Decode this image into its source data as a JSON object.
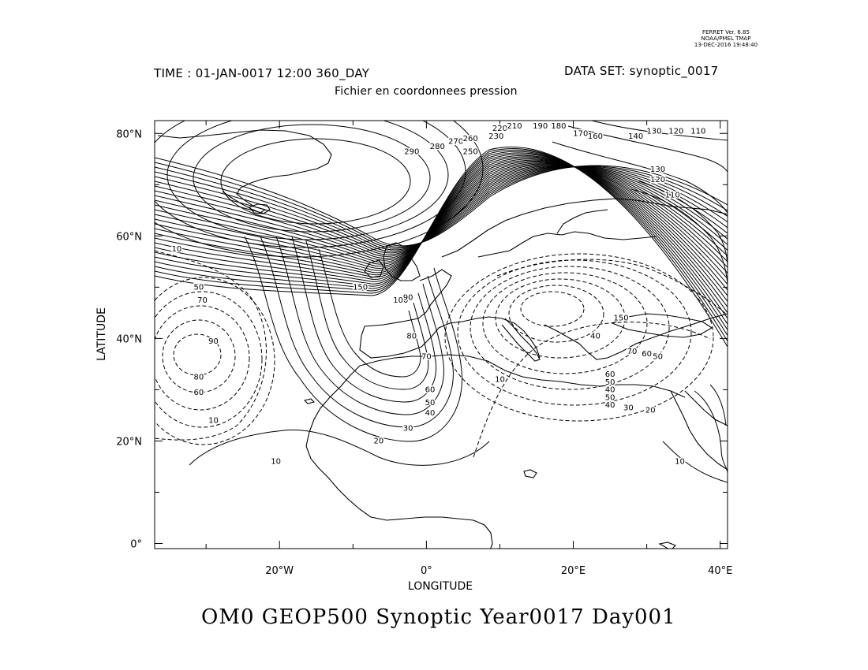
{
  "ferret": {
    "line1": "FERRET Ver. 6.85",
    "line2": "NOAA/PMEL TMAP",
    "line3": "13-DEC-2016 19:48:40"
  },
  "header": {
    "time": "TIME : 01-JAN-0017 12:00 360_DAY",
    "dataset": "DATA SET: synoptic_0017",
    "subtitle": "Fichier en coordonnees pression"
  },
  "axes": {
    "xlabel": "LONGITUDE",
    "ylabel": "LATITUDE",
    "lon_range": [
      -37,
      41
    ],
    "lat_range": [
      -1,
      82.5
    ],
    "lat_ticks": [
      {
        "value": 80,
        "label": "80°N"
      },
      {
        "value": 60,
        "label": "60°N"
      },
      {
        "value": 40,
        "label": "40°N"
      },
      {
        "value": 20,
        "label": "20°N"
      },
      {
        "value": 0,
        "label": "0°"
      }
    ],
    "lon_ticks": [
      {
        "value": -20,
        "label": "20°W"
      },
      {
        "value": 0,
        "label": "0°"
      },
      {
        "value": 20,
        "label": "20°E"
      },
      {
        "value": 40,
        "label": "40°E"
      }
    ]
  },
  "contour_labels": [
    {
      "text": "290",
      "lon": -2,
      "lat": 76
    },
    {
      "text": "280",
      "lon": 1.5,
      "lat": 77
    },
    {
      "text": "270",
      "lon": 4,
      "lat": 78
    },
    {
      "text": "260",
      "lon": 6,
      "lat": 78.5
    },
    {
      "text": "250",
      "lon": 6,
      "lat": 76
    },
    {
      "text": "230",
      "lon": 9.5,
      "lat": 79
    },
    {
      "text": "220",
      "lon": 10,
      "lat": 80.5
    },
    {
      "text": "210",
      "lon": 12,
      "lat": 81
    },
    {
      "text": "190",
      "lon": 15.5,
      "lat": 81
    },
    {
      "text": "180",
      "lon": 18,
      "lat": 81
    },
    {
      "text": "170",
      "lon": 21,
      "lat": 79.5
    },
    {
      "text": "160",
      "lon": 23,
      "lat": 79
    },
    {
      "text": "140",
      "lon": 28.5,
      "lat": 79
    },
    {
      "text": "130",
      "lon": 31,
      "lat": 80
    },
    {
      "text": "120",
      "lon": 34,
      "lat": 80
    },
    {
      "text": "110",
      "lon": 37,
      "lat": 80
    },
    {
      "text": "130",
      "lon": 31.5,
      "lat": 72.5
    },
    {
      "text": "120",
      "lon": 31.5,
      "lat": 70.5
    },
    {
      "text": "110",
      "lon": 33.5,
      "lat": 67.5
    },
    {
      "text": "10",
      "lon": -34,
      "lat": 57
    },
    {
      "text": "50",
      "lon": -31,
      "lat": 49.5
    },
    {
      "text": "70",
      "lon": -30.5,
      "lat": 47
    },
    {
      "text": "90",
      "lon": -29,
      "lat": 39
    },
    {
      "text": "80",
      "lon": -31,
      "lat": 32
    },
    {
      "text": "60",
      "lon": -31,
      "lat": 29
    },
    {
      "text": "10",
      "lon": -29,
      "lat": 23.5
    },
    {
      "text": "150",
      "lon": -9,
      "lat": 49.5
    },
    {
      "text": "100",
      "lon": -3.5,
      "lat": 47
    },
    {
      "text": "90",
      "lon": -2.5,
      "lat": 47.5
    },
    {
      "text": "80",
      "lon": -2,
      "lat": 40
    },
    {
      "text": "70",
      "lon": 0,
      "lat": 36
    },
    {
      "text": "60",
      "lon": 0.5,
      "lat": 29.5
    },
    {
      "text": "50",
      "lon": 0.5,
      "lat": 27
    },
    {
      "text": "40",
      "lon": 0.5,
      "lat": 25
    },
    {
      "text": "30",
      "lon": -2.5,
      "lat": 22
    },
    {
      "text": "20",
      "lon": -6.5,
      "lat": 19.5
    },
    {
      "text": "10",
      "lon": -20.5,
      "lat": 15.5
    },
    {
      "text": "10",
      "lon": 10,
      "lat": 31.5
    },
    {
      "text": "150",
      "lon": 26.5,
      "lat": 43.5
    },
    {
      "text": "40",
      "lon": 23,
      "lat": 40
    },
    {
      "text": "70",
      "lon": 28,
      "lat": 37
    },
    {
      "text": "60",
      "lon": 30,
      "lat": 36.5
    },
    {
      "text": "50",
      "lon": 31.5,
      "lat": 36
    },
    {
      "text": "60",
      "lon": 25,
      "lat": 32.5
    },
    {
      "text": "50",
      "lon": 25,
      "lat": 31
    },
    {
      "text": "40",
      "lon": 25,
      "lat": 29.5
    },
    {
      "text": "50",
      "lon": 25,
      "lat": 28
    },
    {
      "text": "40",
      "lon": 25,
      "lat": 26.5
    },
    {
      "text": "30",
      "lon": 27.5,
      "lat": 26
    },
    {
      "text": "20",
      "lon": 30.5,
      "lat": 25.5
    },
    {
      "text": "10",
      "lon": 34.5,
      "lat": 15.5
    }
  ],
  "title": "OM0 GEOP500 Synoptic Year0017 Day001"
}
